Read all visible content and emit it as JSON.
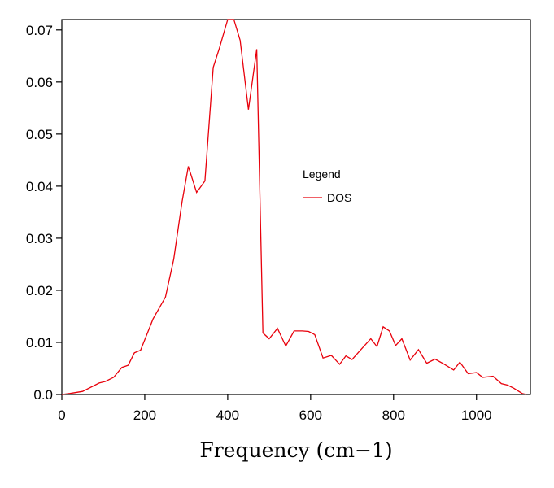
{
  "chart_data": {
    "type": "line",
    "title": "",
    "xlabel": "Frequency (cm−1)",
    "ylabel": "",
    "xlim": [
      0,
      1130
    ],
    "ylim": [
      0,
      0.072
    ],
    "x_ticks": [
      0,
      200,
      400,
      600,
      800,
      1000
    ],
    "x_tick_labels": [
      "0",
      "200",
      "400",
      "600",
      "800",
      "1000"
    ],
    "y_ticks": [
      0,
      0.01,
      0.02,
      0.03,
      0.04,
      0.05,
      0.06,
      0.07
    ],
    "y_tick_labels": [
      "0.0",
      "0.01",
      "0.02",
      "0.03",
      "0.04",
      "0.05",
      "0.06",
      "0.07"
    ],
    "grid": false,
    "legend": {
      "title": "Legend",
      "placement": "center-right",
      "entries": [
        "DOS"
      ]
    },
    "series": [
      {
        "name": "DOS",
        "color": "#e8000b",
        "x": [
          0,
          20,
          50,
          90,
          105,
          125,
          145,
          160,
          175,
          190,
          205,
          220,
          250,
          270,
          290,
          305,
          325,
          345,
          365,
          380,
          400,
          415,
          430,
          450,
          470,
          485,
          500,
          520,
          540,
          560,
          580,
          595,
          610,
          630,
          650,
          670,
          685,
          700,
          720,
          745,
          760,
          775,
          790,
          805,
          820,
          840,
          860,
          880,
          900,
          920,
          945,
          960,
          980,
          1000,
          1015,
          1040,
          1060,
          1075,
          1090,
          1110,
          1120
        ],
        "y": [
          0.0,
          0.0002,
          0.0006,
          0.0022,
          0.0025,
          0.0033,
          0.0052,
          0.0056,
          0.008,
          0.0085,
          0.0115,
          0.0145,
          0.0187,
          0.026,
          0.037,
          0.0438,
          0.0388,
          0.041,
          0.0628,
          0.0665,
          0.072,
          0.072,
          0.068,
          0.0547,
          0.0663,
          0.0118,
          0.0107,
          0.0127,
          0.0093,
          0.0122,
          0.0122,
          0.0121,
          0.0115,
          0.007,
          0.0075,
          0.0058,
          0.0074,
          0.0067,
          0.0085,
          0.0107,
          0.0092,
          0.013,
          0.0122,
          0.0094,
          0.0107,
          0.0066,
          0.0086,
          0.006,
          0.0068,
          0.0059,
          0.0047,
          0.0062,
          0.004,
          0.0042,
          0.0033,
          0.0035,
          0.0021,
          0.0018,
          0.0012,
          0.0002,
          0.0
        ]
      }
    ]
  }
}
